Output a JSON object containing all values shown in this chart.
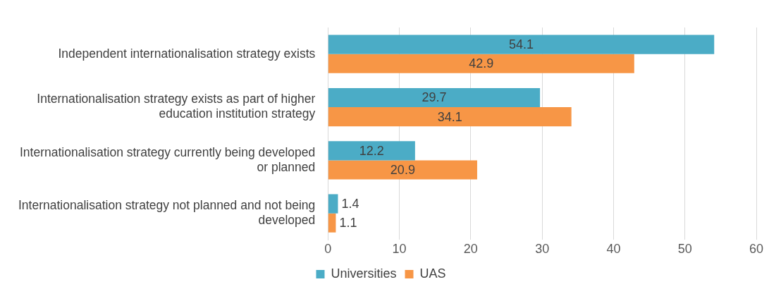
{
  "chart_data": {
    "type": "bar",
    "orientation": "horizontal",
    "categories": [
      "Independent internationalisation strategy exists",
      "Internationalisation strategy exists as part of higher education institution strategy",
      "Internationalisation strategy currently being developed or planned",
      "Internationalisation strategy not planned and not being developed"
    ],
    "series": [
      {
        "name": "Universities",
        "color": "#4bacc6",
        "values": [
          54.1,
          29.7,
          12.2,
          1.4
        ]
      },
      {
        "name": "UAS",
        "color": "#f79646",
        "values": [
          42.9,
          34.1,
          20.9,
          1.1
        ]
      }
    ],
    "xlim": [
      0,
      60
    ],
    "xticks": [
      0,
      10,
      20,
      30,
      40,
      50,
      60
    ],
    "grid": "x",
    "legend": "bottom",
    "data_labels": true
  }
}
